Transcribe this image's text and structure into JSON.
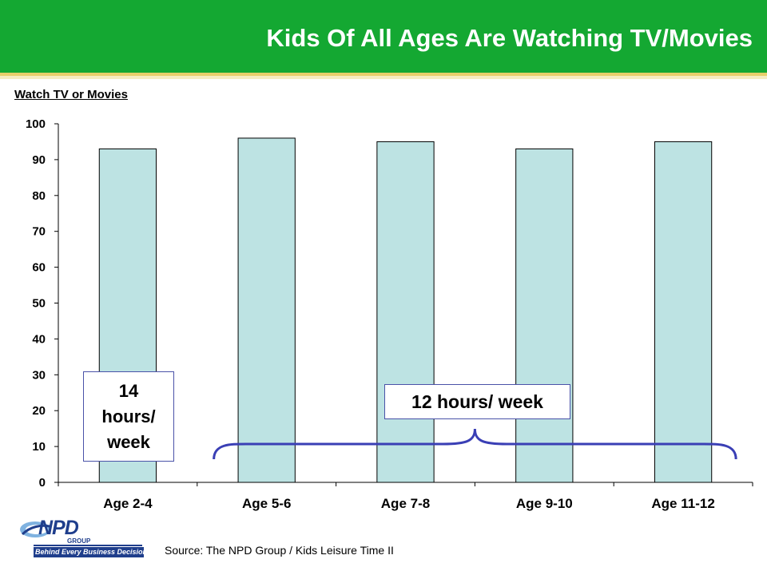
{
  "header": {
    "title": "Kids Of All Ages Are Watching TV/Movies"
  },
  "chart_data": {
    "type": "bar",
    "title": "Watch TV or Movies",
    "categories": [
      "Age 2-4",
      "Age 5-6",
      "Age 7-8",
      "Age 9-10",
      "Age 11-12"
    ],
    "values": [
      93,
      96,
      95,
      93,
      95
    ],
    "ylim": [
      0,
      100
    ],
    "yticks": [
      0,
      10,
      20,
      30,
      40,
      50,
      60,
      70,
      80,
      90,
      100
    ],
    "xlabel": "",
    "ylabel": "",
    "grid": false,
    "bar_color": "#bde3e3",
    "bar_border": "#000000",
    "annotations": [
      {
        "text": "14 hours/ week",
        "applies_to": [
          "Age 2-4"
        ]
      },
      {
        "text": "12 hours/ week",
        "applies_to": [
          "Age 5-6",
          "Age 7-8",
          "Age 9-10",
          "Age 11-12"
        ]
      }
    ],
    "brace_color": "#3a3fb5"
  },
  "footer": {
    "source": "Source:  The NPD Group / Kids Leisure Time II",
    "logo_word": "NPD",
    "logo_group": "GROUP",
    "logo_tagline": "Behind Every Business Decision"
  },
  "colors": {
    "header_green": "#14a832",
    "accent_gold": "#e8cf6a",
    "logo_blue": "#1f3e8c"
  }
}
